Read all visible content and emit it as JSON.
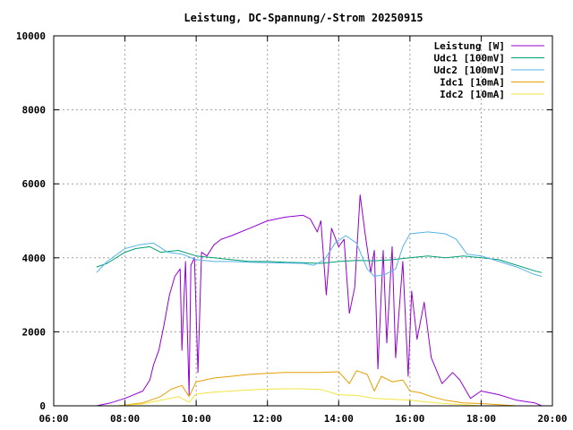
{
  "chart_data": {
    "type": "line",
    "title": "Leistung, DC-Spannung/-Strom 20250915",
    "xlabel": "",
    "ylabel": "",
    "xlim": [
      6,
      20
    ],
    "ylim": [
      0,
      10000
    ],
    "x_ticks": [
      "06:00",
      "08:00",
      "10:00",
      "12:00",
      "14:00",
      "16:00",
      "18:00",
      "20:00"
    ],
    "y_ticks": [
      "0",
      "2000",
      "4000",
      "6000",
      "8000",
      "10000"
    ],
    "grid": true,
    "legend_position": "top-right",
    "series": [
      {
        "name": "Leistung [W]",
        "color": "#9400d3",
        "points": [
          [
            7.2,
            0
          ],
          [
            7.6,
            80
          ],
          [
            8.0,
            200
          ],
          [
            8.5,
            400
          ],
          [
            8.7,
            700
          ],
          [
            8.8,
            1100
          ],
          [
            8.95,
            1500
          ],
          [
            9.1,
            2200
          ],
          [
            9.25,
            3000
          ],
          [
            9.4,
            3500
          ],
          [
            9.55,
            3700
          ],
          [
            9.6,
            1500
          ],
          [
            9.7,
            3900
          ],
          [
            9.8,
            300
          ],
          [
            9.85,
            3800
          ],
          [
            9.95,
            4000
          ],
          [
            10.05,
            900
          ],
          [
            10.15,
            4150
          ],
          [
            10.3,
            4050
          ],
          [
            10.5,
            4350
          ],
          [
            10.7,
            4500
          ],
          [
            11.0,
            4600
          ],
          [
            11.5,
            4800
          ],
          [
            12.0,
            5000
          ],
          [
            12.5,
            5100
          ],
          [
            13.0,
            5150
          ],
          [
            13.2,
            5050
          ],
          [
            13.4,
            4700
          ],
          [
            13.5,
            5000
          ],
          [
            13.65,
            3000
          ],
          [
            13.8,
            4800
          ],
          [
            14.0,
            4300
          ],
          [
            14.15,
            4500
          ],
          [
            14.3,
            2500
          ],
          [
            14.45,
            3200
          ],
          [
            14.6,
            5700
          ],
          [
            14.75,
            4600
          ],
          [
            14.9,
            3600
          ],
          [
            15.0,
            4200
          ],
          [
            15.1,
            1000
          ],
          [
            15.25,
            4200
          ],
          [
            15.35,
            1700
          ],
          [
            15.5,
            4300
          ],
          [
            15.6,
            1300
          ],
          [
            15.8,
            3900
          ],
          [
            15.95,
            800
          ],
          [
            16.05,
            3100
          ],
          [
            16.2,
            1800
          ],
          [
            16.4,
            2800
          ],
          [
            16.6,
            1300
          ],
          [
            16.9,
            600
          ],
          [
            17.2,
            900
          ],
          [
            17.4,
            700
          ],
          [
            17.7,
            200
          ],
          [
            18.0,
            400
          ],
          [
            18.5,
            300
          ],
          [
            19.0,
            150
          ],
          [
            19.5,
            80
          ],
          [
            19.7,
            0
          ]
        ]
      },
      {
        "name": "Udc1 [100mV]",
        "color": "#009e73",
        "points": [
          [
            7.2,
            3750
          ],
          [
            7.5,
            3850
          ],
          [
            8.0,
            4150
          ],
          [
            8.3,
            4250
          ],
          [
            8.7,
            4300
          ],
          [
            9.0,
            4150
          ],
          [
            9.5,
            4200
          ],
          [
            10.0,
            4050
          ],
          [
            10.5,
            4000
          ],
          [
            11.0,
            3950
          ],
          [
            11.5,
            3900
          ],
          [
            12.0,
            3900
          ],
          [
            12.5,
            3880
          ],
          [
            13.0,
            3870
          ],
          [
            13.5,
            3850
          ],
          [
            14.0,
            3900
          ],
          [
            14.5,
            3930
          ],
          [
            15.0,
            3920
          ],
          [
            15.5,
            3950
          ],
          [
            16.0,
            4000
          ],
          [
            16.5,
            4050
          ],
          [
            17.0,
            4000
          ],
          [
            17.5,
            4050
          ],
          [
            18.0,
            4000
          ],
          [
            18.5,
            3950
          ],
          [
            19.0,
            3800
          ],
          [
            19.5,
            3650
          ],
          [
            19.7,
            3600
          ]
        ]
      },
      {
        "name": "Udc2 [100mV]",
        "color": "#56b4e9",
        "points": [
          [
            7.2,
            3600
          ],
          [
            7.5,
            3900
          ],
          [
            8.0,
            4250
          ],
          [
            8.4,
            4350
          ],
          [
            8.8,
            4400
          ],
          [
            9.2,
            4150
          ],
          [
            9.6,
            4100
          ],
          [
            10.0,
            3950
          ],
          [
            10.5,
            3900
          ],
          [
            11.0,
            3900
          ],
          [
            11.5,
            3880
          ],
          [
            12.0,
            3870
          ],
          [
            12.5,
            3860
          ],
          [
            13.0,
            3850
          ],
          [
            13.3,
            3800
          ],
          [
            13.6,
            3950
          ],
          [
            13.9,
            4400
          ],
          [
            14.2,
            4600
          ],
          [
            14.5,
            4400
          ],
          [
            14.8,
            3700
          ],
          [
            15.0,
            3500
          ],
          [
            15.3,
            3550
          ],
          [
            15.6,
            3700
          ],
          [
            15.8,
            4300
          ],
          [
            16.0,
            4650
          ],
          [
            16.5,
            4700
          ],
          [
            17.0,
            4650
          ],
          [
            17.3,
            4500
          ],
          [
            17.6,
            4100
          ],
          [
            18.0,
            4050
          ],
          [
            18.5,
            3900
          ],
          [
            19.0,
            3750
          ],
          [
            19.5,
            3550
          ],
          [
            19.7,
            3500
          ]
        ]
      },
      {
        "name": "Idc1 [10mA]",
        "color": "#e69f00",
        "points": [
          [
            7.8,
            0
          ],
          [
            8.5,
            80
          ],
          [
            9.0,
            250
          ],
          [
            9.3,
            450
          ],
          [
            9.6,
            550
          ],
          [
            9.8,
            250
          ],
          [
            10.0,
            650
          ],
          [
            10.5,
            750
          ],
          [
            11.0,
            800
          ],
          [
            11.5,
            850
          ],
          [
            12.0,
            880
          ],
          [
            12.5,
            900
          ],
          [
            13.0,
            900
          ],
          [
            13.5,
            900
          ],
          [
            14.0,
            920
          ],
          [
            14.3,
            600
          ],
          [
            14.5,
            950
          ],
          [
            14.8,
            850
          ],
          [
            15.0,
            400
          ],
          [
            15.2,
            800
          ],
          [
            15.5,
            650
          ],
          [
            15.8,
            700
          ],
          [
            16.0,
            400
          ],
          [
            16.3,
            350
          ],
          [
            16.6,
            250
          ],
          [
            17.0,
            150
          ],
          [
            17.5,
            80
          ],
          [
            18.0,
            60
          ],
          [
            18.5,
            30
          ],
          [
            19.0,
            0
          ]
        ]
      },
      {
        "name": "Idc2 [10mA]",
        "color": "#f0e442",
        "points": [
          [
            7.8,
            0
          ],
          [
            8.5,
            50
          ],
          [
            9.0,
            150
          ],
          [
            9.5,
            250
          ],
          [
            9.8,
            100
          ],
          [
            10.0,
            320
          ],
          [
            10.5,
            370
          ],
          [
            11.0,
            400
          ],
          [
            11.5,
            430
          ],
          [
            12.0,
            450
          ],
          [
            12.5,
            460
          ],
          [
            13.0,
            460
          ],
          [
            13.5,
            440
          ],
          [
            14.0,
            300
          ],
          [
            14.5,
            280
          ],
          [
            15.0,
            200
          ],
          [
            15.5,
            180
          ],
          [
            16.0,
            150
          ],
          [
            16.5,
            100
          ],
          [
            17.0,
            60
          ],
          [
            17.5,
            30
          ],
          [
            18.0,
            0
          ]
        ]
      }
    ]
  }
}
